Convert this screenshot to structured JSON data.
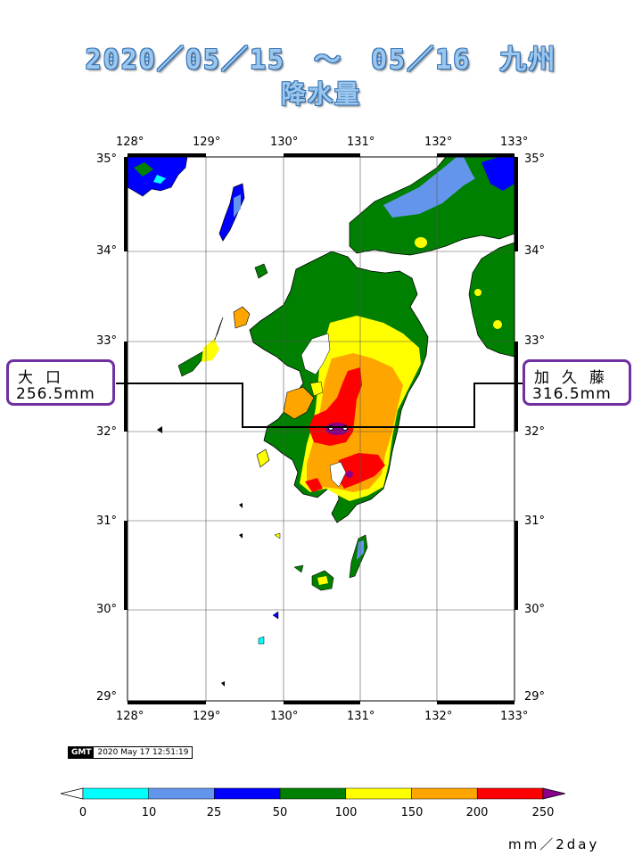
{
  "title": {
    "line1": "2020／05／15　～　05／16　九州",
    "line2": "降水量"
  },
  "map": {
    "lon_ticks": [
      "128°",
      "129°",
      "130°",
      "131°",
      "132°",
      "133°"
    ],
    "lat_ticks": [
      "35°",
      "34°",
      "33°",
      "32°",
      "31°",
      "30°",
      "29°"
    ],
    "lon_range": [
      128,
      133
    ],
    "lat_range": [
      29,
      35
    ]
  },
  "callouts": {
    "left": {
      "name": "大口",
      "value": "256.5mm"
    },
    "right": {
      "name": "加久藤",
      "value": "316.5mm"
    }
  },
  "stamp": {
    "logo": "GMT",
    "timestamp": "2020 May 17 12:51:19"
  },
  "legend": {
    "ticks": [
      "0",
      "10",
      "25",
      "50",
      "100",
      "150",
      "200",
      "250"
    ],
    "colors": [
      "#ffffff",
      "#00ffff",
      "#6495ed",
      "#0000ff",
      "#008000",
      "#ffff00",
      "#ffa500",
      "#ff0000",
      "#8b008b"
    ],
    "unit": "mm／2day"
  }
}
